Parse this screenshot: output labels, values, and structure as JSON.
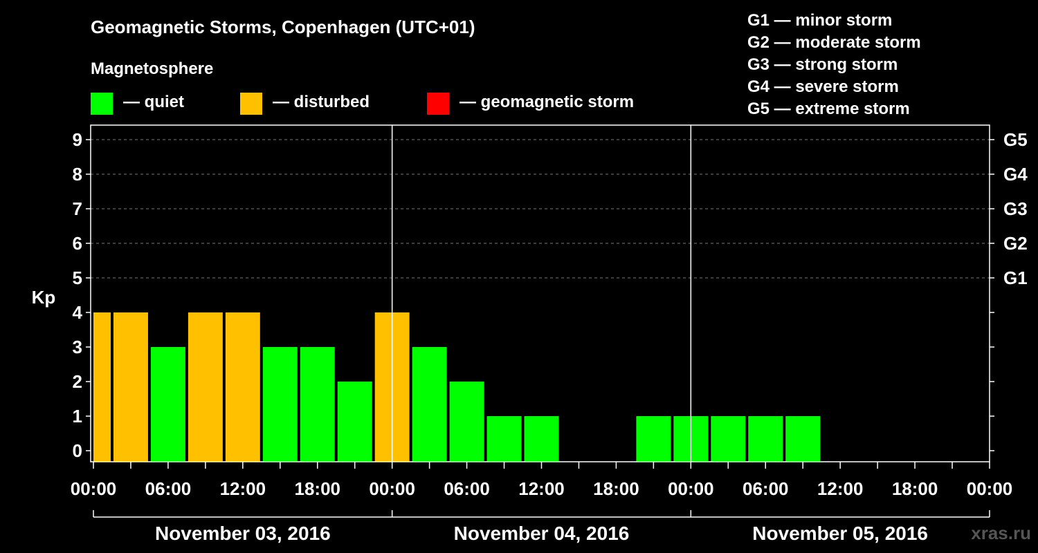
{
  "title": "Geomagnetic Storms, Copenhagen (UTC+01)",
  "magnetosphere_label": "Magnetosphere",
  "legend": [
    {
      "label": "— quiet",
      "color": "#00ff00"
    },
    {
      "label": "— disturbed",
      "color": "#ffc000"
    },
    {
      "label": "— geomagnetic storm",
      "color": "#ff0000"
    }
  ],
  "g_levels": [
    "G1 — minor storm",
    "G2 — moderate storm",
    "G3 — strong storm",
    "G4 — severe storm",
    "G5 — extreme storm"
  ],
  "watermark": "xras.ru",
  "chart_data": {
    "type": "bar",
    "ylabel": "Kp",
    "ylim": [
      0,
      9
    ],
    "y_ticks": [
      "0",
      "1",
      "2",
      "3",
      "4",
      "5",
      "6",
      "7",
      "8",
      "9"
    ],
    "right_ticks": [
      {
        "value": 5,
        "label": "G1"
      },
      {
        "value": 6,
        "label": "G2"
      },
      {
        "value": 7,
        "label": "G3"
      },
      {
        "value": 8,
        "label": "G4"
      },
      {
        "value": 9,
        "label": "G5"
      }
    ],
    "x_tick_labels": [
      "00:00",
      "06:00",
      "12:00",
      "18:00",
      "00:00",
      "06:00",
      "12:00",
      "18:00",
      "00:00",
      "06:00",
      "12:00",
      "18:00",
      "00:00"
    ],
    "day_labels": [
      "November 03, 2016",
      "November 04, 2016",
      "November 05, 2016"
    ],
    "grid": "dashed horizontal at Kp 5-9",
    "bar_interval_hours": 3,
    "values": [
      4,
      4,
      3,
      4,
      4,
      3,
      3,
      2,
      4,
      3,
      2,
      1,
      1,
      null,
      null,
      1,
      1,
      1,
      1,
      1
    ],
    "colors": [
      "#ffc000",
      "#ffc000",
      "#00ff00",
      "#ffc000",
      "#ffc000",
      "#00ff00",
      "#00ff00",
      "#00ff00",
      "#ffc000",
      "#00ff00",
      "#00ff00",
      "#00ff00",
      "#00ff00",
      null,
      null,
      "#00ff00",
      "#00ff00",
      "#00ff00",
      "#00ff00",
      "#00ff00"
    ]
  }
}
